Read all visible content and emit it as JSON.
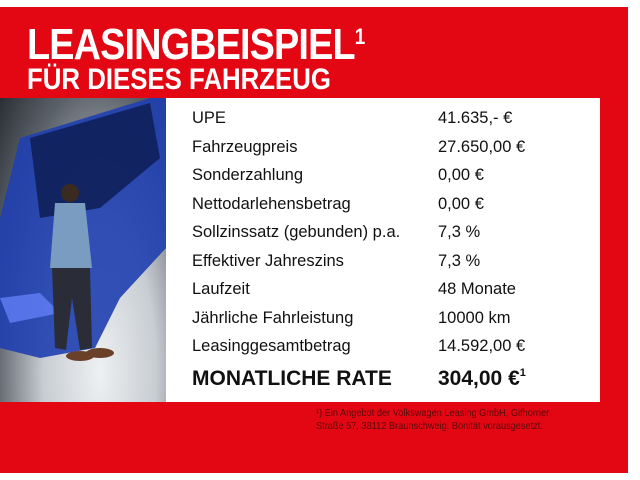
{
  "title": {
    "line1": "LEASINGBEISPIEL",
    "line1_sup": "1",
    "line2": "FÜR DIESES FAHRZEUG"
  },
  "rows": [
    {
      "label": "UPE",
      "value": "41.635,- €"
    },
    {
      "label": "Fahrzeugpreis",
      "value": "27.650,00 €"
    },
    {
      "label": "Sonderzahlung",
      "value": "0,00 €"
    },
    {
      "label": "Nettodarlehensbetrag",
      "value": "0,00 €"
    },
    {
      "label": "Sollzinssatz (gebunden) p.a.",
      "value": "7,3 %"
    },
    {
      "label": "Effektiver Jahreszins",
      "value": "7,3 %"
    },
    {
      "label": "Laufzeit",
      "value": "48 Monate"
    },
    {
      "label": "Jährliche Fahrleistung",
      "value": "10000 km"
    },
    {
      "label": "Leasinggesamtbetrag",
      "value": "14.592,00 €"
    }
  ],
  "rate": {
    "label": "MONATLICHE RATE",
    "value": "304,00 €",
    "sup": "1"
  },
  "footnote": {
    "line1": "¹) Ein Angebot der Volkswagen Leasing GmbH, Gifhorner",
    "line2": "Straße 57, 38112 Braunschweig. Bonität vorausgesetzt."
  },
  "colors": {
    "brand_red": "#e30613",
    "car_blue": "#1f3fb0"
  }
}
